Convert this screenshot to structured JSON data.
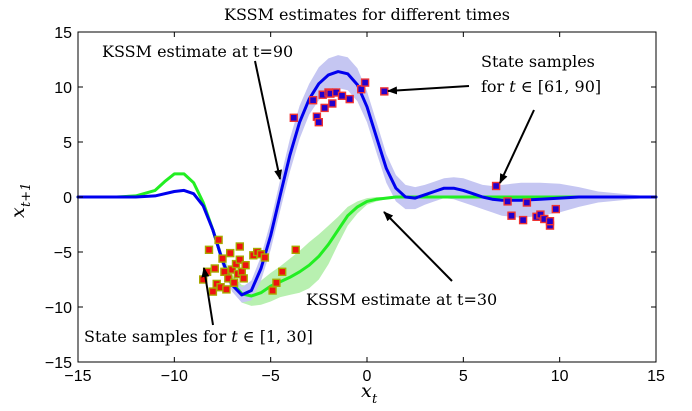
{
  "chart_data": {
    "type": "line",
    "title": "KSSM estimates for different times",
    "xlabel": "x_t",
    "ylabel": "x_{t+1}",
    "xlim": [
      -15,
      15
    ],
    "ylim": [
      -15,
      15
    ],
    "xticks": [
      -15,
      -10,
      -5,
      0,
      5,
      10,
      15
    ],
    "yticks": [
      -15,
      -10,
      -5,
      0,
      5,
      10,
      15
    ],
    "xtick_labels": [
      "−15",
      "−10",
      "−5",
      "0",
      "5",
      "10",
      "15"
    ],
    "ytick_labels": [
      "−15",
      "−10",
      "−5",
      "0",
      "5",
      "10",
      "15"
    ],
    "grid": false,
    "series": [
      {
        "kind": "mean",
        "color": "#22ee22",
        "fill": "#b8f0b0",
        "x": [
          -15,
          -13,
          -12,
          -11,
          -10.5,
          -10,
          -9.5,
          -9,
          -8.5,
          -8,
          -7.5,
          -7,
          -6.5,
          -6,
          -5.5,
          -5,
          -4.5,
          -4,
          -3.5,
          -3,
          -2.5,
          -2,
          -1.5,
          -1,
          -0.5,
          0,
          0.5,
          1,
          1.5,
          2,
          3,
          4,
          5,
          6,
          7,
          8,
          10,
          12,
          15
        ],
        "y": [
          0,
          0,
          0.1,
          0.6,
          1.4,
          2.1,
          2.1,
          1.3,
          -0.5,
          -3,
          -5.8,
          -7.8,
          -8.8,
          -9,
          -8.7,
          -8.1,
          -7.7,
          -7.3,
          -6.8,
          -6.2,
          -5.4,
          -4.3,
          -3,
          -1.7,
          -0.9,
          -0.4,
          -0.2,
          -0.1,
          0,
          0,
          0,
          0,
          0,
          0,
          0,
          0,
          0,
          0,
          0
        ],
        "upper": [
          0,
          0,
          0.1,
          0.6,
          1.4,
          2.1,
          2.1,
          1.3,
          -0.3,
          -2.6,
          -5.2,
          -7.1,
          -8,
          -8.1,
          -7.6,
          -6.9,
          -6.3,
          -5.6,
          -4.9,
          -4.1,
          -3.4,
          -2.6,
          -1.8,
          -0.9,
          -0.4,
          -0.1,
          0,
          0,
          0.1,
          0.2,
          0.2,
          0.1,
          0,
          0,
          0,
          0,
          0,
          0,
          0
        ],
        "lower": [
          0,
          0,
          0.1,
          0.6,
          1.4,
          2.1,
          2.1,
          1.3,
          -0.7,
          -3.4,
          -6.4,
          -8.5,
          -9.6,
          -9.9,
          -9.8,
          -9.5,
          -9.1,
          -8.9,
          -8.7,
          -8.3,
          -7.5,
          -6.1,
          -4.3,
          -2.6,
          -1.5,
          -0.7,
          -0.4,
          -0.2,
          -0.1,
          -0.1,
          -0.1,
          0,
          0,
          0,
          0,
          0,
          0,
          0,
          0
        ]
      },
      {
        "kind": "mean",
        "color": "#0000ee",
        "fill": "#c5c6f2",
        "x": [
          -15,
          -12,
          -11,
          -10,
          -9.5,
          -9,
          -8.5,
          -8,
          -7.5,
          -7,
          -6.5,
          -6,
          -5.5,
          -5,
          -4.5,
          -4,
          -3.5,
          -3,
          -2.5,
          -2,
          -1.5,
          -1,
          -0.5,
          0,
          0.5,
          1,
          1.5,
          2,
          2.5,
          3,
          3.5,
          4,
          4.5,
          5,
          5.5,
          6,
          6.5,
          7,
          7.5,
          8,
          9,
          10,
          11,
          12,
          15
        ],
        "y": [
          0,
          0,
          0.1,
          0.5,
          0.6,
          0.3,
          -0.8,
          -3,
          -5.8,
          -8,
          -8.9,
          -8.5,
          -6.5,
          -3.5,
          0.2,
          3.8,
          6.8,
          8.9,
          10.3,
          11.1,
          11.4,
          11.2,
          10.2,
          8.2,
          5.4,
          2.6,
          0.8,
          0,
          -0.1,
          0.2,
          0.5,
          0.8,
          0.8,
          0.6,
          0.3,
          0,
          -0.2,
          -0.3,
          -0.3,
          -0.3,
          -0.2,
          -0.1,
          0,
          0,
          0
        ],
        "upper": [
          0,
          0,
          0.1,
          0.5,
          0.6,
          0.3,
          -0.6,
          -2.6,
          -5.3,
          -7.4,
          -8.2,
          -7.6,
          -5.4,
          -2.2,
          1.6,
          5.3,
          8.3,
          10.3,
          11.8,
          12.6,
          12.9,
          12.7,
          11.7,
          9.6,
          6.8,
          3.9,
          2,
          1.1,
          0.9,
          1.1,
          1.4,
          1.7,
          1.8,
          1.7,
          1.4,
          1.1,
          1,
          1.1,
          1.2,
          1.3,
          1.3,
          1.2,
          0.9,
          0.5,
          0
        ],
        "lower": [
          0,
          0,
          0.1,
          0.5,
          0.6,
          0.3,
          -1,
          -3.4,
          -6.3,
          -8.6,
          -9.6,
          -9.4,
          -7.6,
          -4.8,
          -1.2,
          2.3,
          5.3,
          7.5,
          8.8,
          9.6,
          9.9,
          9.7,
          8.7,
          6.8,
          4,
          1.3,
          -0.4,
          -1.1,
          -1.1,
          -0.7,
          -0.4,
          -0.1,
          -0.2,
          -0.5,
          -0.8,
          -1.1,
          -1.4,
          -1.7,
          -1.8,
          -1.9,
          -1.7,
          -1.4,
          -0.9,
          -0.5,
          0
        ]
      }
    ],
    "scatter": [
      {
        "face": "#ee1111",
        "edge": "#a8a800",
        "points": [
          [
            -8.5,
            -7.5
          ],
          [
            -8.3,
            -6.8
          ],
          [
            -8.2,
            -4.8
          ],
          [
            -8,
            -8.6
          ],
          [
            -7.9,
            -6.5
          ],
          [
            -7.8,
            -7.9
          ],
          [
            -7.7,
            -3.9
          ],
          [
            -7.6,
            -8.2
          ],
          [
            -7.5,
            -5.6
          ],
          [
            -7.4,
            -6.8
          ],
          [
            -7.3,
            -8.4
          ],
          [
            -7.2,
            -7.4
          ],
          [
            -7.1,
            -5.1
          ],
          [
            -7,
            -6.6
          ],
          [
            -6.9,
            -7.8
          ],
          [
            -6.8,
            -6.1
          ],
          [
            -6.7,
            -7
          ],
          [
            -6.6,
            -5.7
          ],
          [
            -6.6,
            -4.5
          ],
          [
            -6.5,
            -6.8
          ],
          [
            -6.4,
            -7.4
          ],
          [
            -6.3,
            -6.2
          ],
          [
            -5.9,
            -5.3
          ],
          [
            -5.7,
            -5
          ],
          [
            -5.5,
            -5.2
          ],
          [
            -5.3,
            -5.5
          ],
          [
            -4.9,
            -8.5
          ],
          [
            -4.7,
            -7.8
          ],
          [
            -4.4,
            -6.8
          ],
          [
            -3.7,
            -4.8
          ]
        ]
      },
      {
        "face": "#2200cc",
        "edge": "#ee3333",
        "points": [
          [
            -3.8,
            7.2
          ],
          [
            -2.8,
            8.8
          ],
          [
            -2.6,
            7.3
          ],
          [
            -2.5,
            6.8
          ],
          [
            -2.3,
            9.3
          ],
          [
            -2.2,
            8.1
          ],
          [
            -2.0,
            9.5
          ],
          [
            -1.9,
            9.4
          ],
          [
            -1.8,
            8.5
          ],
          [
            -1.6,
            9.5
          ],
          [
            -1.3,
            9.2
          ],
          [
            -0.9,
            8.9
          ],
          [
            -0.3,
            9.8
          ],
          [
            -0.1,
            10.4
          ],
          [
            0.9,
            9.6
          ],
          [
            6.7,
            1
          ],
          [
            7.3,
            -0.4
          ],
          [
            7.5,
            -1.7
          ],
          [
            8.1,
            -2.1
          ],
          [
            8.3,
            -0.5
          ],
          [
            8.8,
            -1.8
          ],
          [
            9,
            -1.6
          ],
          [
            9.2,
            -2
          ],
          [
            9.5,
            -2.6
          ],
          [
            9.5,
            -2.2
          ],
          [
            9.8,
            -1.1
          ]
        ]
      }
    ],
    "annotations": [
      {
        "text": "KSSM estimate at t=90",
        "arrow_from": [
          -4.6,
          13
        ],
        "arrow_to": [
          -2.2,
          1.6
        ]
      },
      {
        "text": "State samples",
        "text_line2": "for ",
        "math_var": "t",
        "math_rest": " ∈ [61, 90]",
        "arrow_from": [
          2.5,
          10.1
        ],
        "arrow_to": [
          1.1,
          9.6
        ]
      },
      {
        "text_arrow": "",
        "arrow_from": [
          7.8,
          8
        ],
        "arrow_to": [
          6.8,
          1.2
        ]
      },
      {
        "text": "KSSM estimate at t=30",
        "arrow_from": [
          3.2,
          -8.2
        ],
        "arrow_to": [
          0.6,
          -1.5
        ]
      },
      {
        "text": "State samples for ",
        "math_var": "t",
        "math_rest": " ∈ [1, 30]",
        "arrow_from": [
          -7.5,
          -11
        ],
        "arrow_to": [
          -8.1,
          -6.5
        ]
      }
    ]
  }
}
